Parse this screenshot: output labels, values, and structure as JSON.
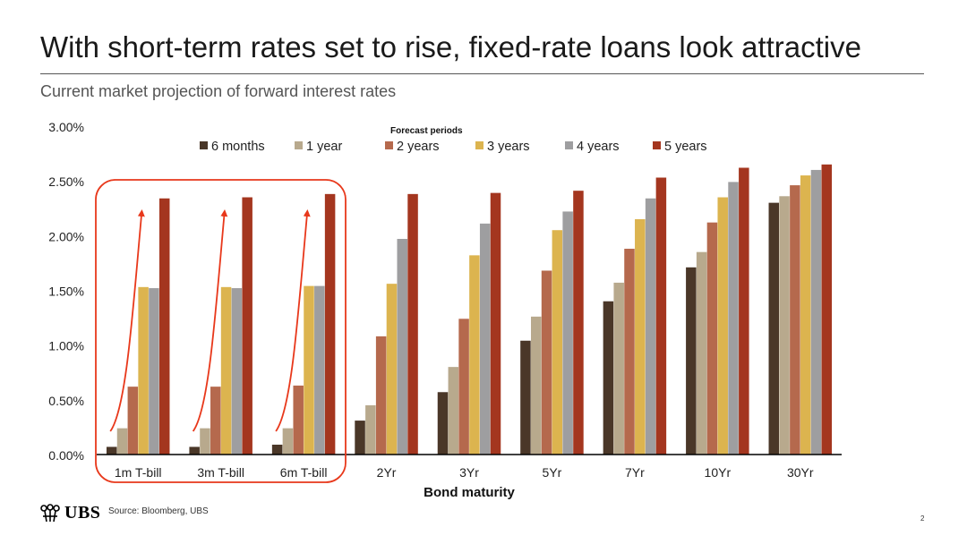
{
  "header": {
    "title": "With short-term rates set to rise, fixed-rate loans look attractive",
    "subtitle": "Current market projection of forward interest rates"
  },
  "footer": {
    "logo_text": "UBS",
    "source": "Source: Bloomberg, UBS",
    "page_number": "2"
  },
  "chart_data": {
    "type": "bar",
    "title": "",
    "xlabel": "Bond maturity",
    "ylabel": "",
    "ylim": [
      0,
      3.0
    ],
    "y_ticks": [
      "0.00%",
      "0.50%",
      "1.00%",
      "1.50%",
      "2.00%",
      "2.50%",
      "3.00%"
    ],
    "legend_title": "Forecast periods",
    "legend_position": "top-center",
    "grid": false,
    "categories": [
      "1m T-bill",
      "3m T-bill",
      "6m T-bill",
      "2Yr",
      "3Yr",
      "5Yr",
      "7Yr",
      "10Yr",
      "30Yr"
    ],
    "series": [
      {
        "name": "6 months",
        "color": "#4a3728",
        "values": [
          0.07,
          0.07,
          0.09,
          0.31,
          0.57,
          1.04,
          1.4,
          1.71,
          2.3
        ]
      },
      {
        "name": "1 year",
        "color": "#b8a98d",
        "values": [
          0.24,
          0.24,
          0.24,
          0.45,
          0.8,
          1.26,
          1.57,
          1.85,
          2.36
        ]
      },
      {
        "name": "2 years",
        "color": "#b5694d",
        "values": [
          0.62,
          0.62,
          0.63,
          1.08,
          1.24,
          1.68,
          1.88,
          2.12,
          2.46
        ]
      },
      {
        "name": "3 years",
        "color": "#dcb44f",
        "values": [
          1.53,
          1.53,
          1.54,
          1.56,
          1.82,
          2.05,
          2.15,
          2.35,
          2.55
        ]
      },
      {
        "name": "4 years",
        "color": "#9e9ea0",
        "values": [
          1.52,
          1.52,
          1.54,
          1.97,
          2.11,
          2.22,
          2.34,
          2.49,
          2.6
        ]
      },
      {
        "name": "5 years",
        "color": "#a4361f",
        "values": [
          2.34,
          2.35,
          2.38,
          2.38,
          2.39,
          2.41,
          2.53,
          2.62,
          2.65
        ]
      }
    ],
    "annotations": {
      "highlight_color": "#e8381b",
      "highlighted_categories": [
        "1m T-bill",
        "3m T-bill",
        "6m T-bill"
      ],
      "arrows": "rising-arrow"
    }
  }
}
